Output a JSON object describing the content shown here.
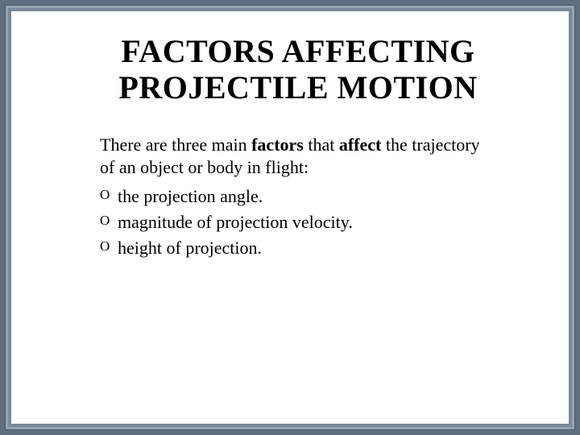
{
  "frame": {
    "outer_bg": "#5e6f80",
    "mid_bg": "#96a4b1",
    "inner_bg": "#7a8a99",
    "slide_bg": "#ffffff"
  },
  "title": {
    "line1": "FACTORS AFFECTING",
    "line2": "PROJECTILE MOTION",
    "color": "#000000",
    "fontsize": 40,
    "fontweight": "bold",
    "align": "center"
  },
  "intro": {
    "prefix": "There are three main ",
    "bold1": "factors",
    "mid": " that ",
    "bold2": "affect",
    "suffix": " the trajectory of an object or body in flight:",
    "fontsize": 22,
    "color": "#000000"
  },
  "bullets": {
    "marker": "O",
    "fontsize": 22,
    "color": "#000000",
    "items": [
      "the projection angle.",
      "magnitude of projection velocity.",
      "height of projection."
    ]
  }
}
